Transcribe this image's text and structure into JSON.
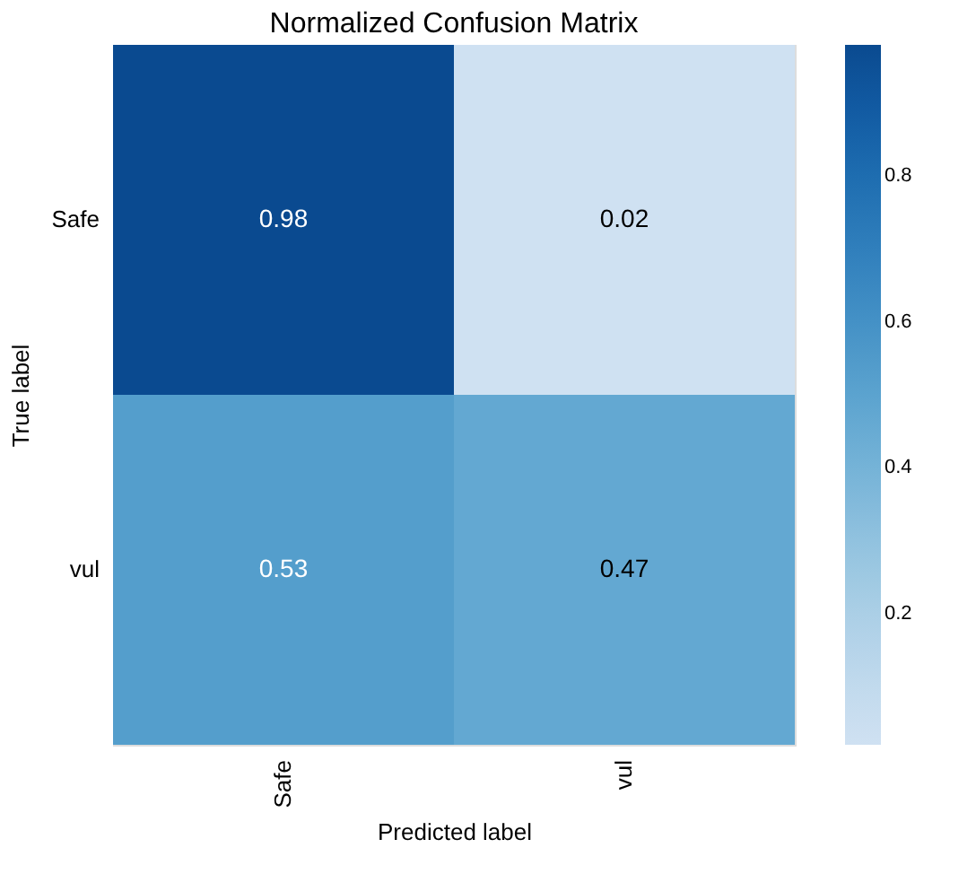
{
  "chart_data": {
    "type": "heatmap",
    "title": "Normalized Confusion Matrix",
    "xlabel": "Predicted label",
    "ylabel": "True label",
    "categories": [
      "Safe",
      "vul"
    ],
    "y_categories": [
      "Safe",
      "vul"
    ],
    "cells": [
      [
        0.98,
        0.02
      ],
      [
        0.53,
        0.47
      ]
    ],
    "clim": [
      0.02,
      0.98
    ],
    "cticks": [
      0.2,
      0.4,
      0.6,
      0.8
    ],
    "data_labels": true
  }
}
